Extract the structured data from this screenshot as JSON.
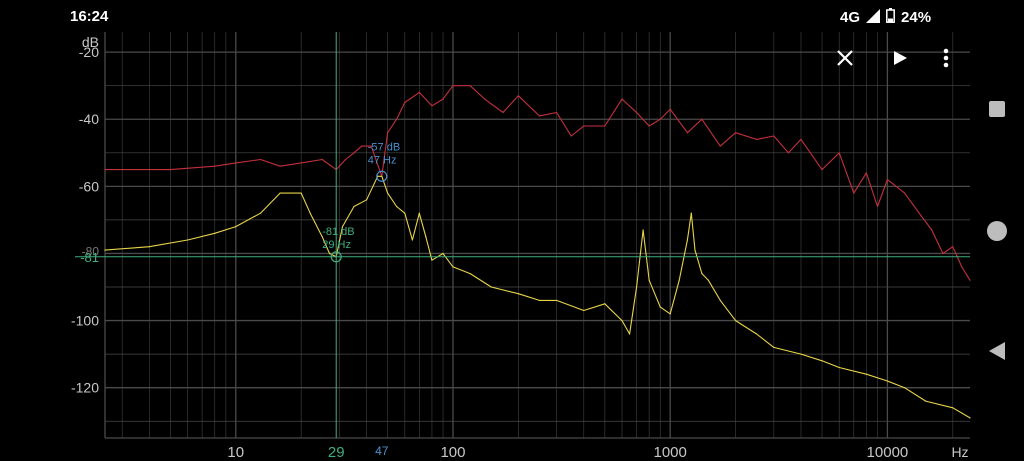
{
  "status_bar": {
    "time": "16:24",
    "network": "4G",
    "battery": "24%"
  },
  "controls": {
    "close_icon": "close-icon",
    "play_icon": "play-icon",
    "menu_icon": "more-vert-icon"
  },
  "nav_bar": {
    "square_icon": "recents-square-icon",
    "circle_icon": "home-circle-icon",
    "back_icon": "back-triangle-icon"
  },
  "colors": {
    "background": "#000000",
    "grid": "#4a4a4a",
    "series_red": "#c4303c",
    "series_yellow": "#e8d44a",
    "cursor_green": "#3fae7e",
    "marker_blue": "#4a8fd0",
    "axis_text": "#c8c8c8"
  },
  "chart_data": {
    "type": "line",
    "x_scale": "log",
    "xlim": [
      2.5,
      24000
    ],
    "ylim": [
      -135,
      -14
    ],
    "ylabel": "dB",
    "xlabel": "Hz",
    "x_ticks": [
      {
        "value": 10,
        "label": "10"
      },
      {
        "value": 100,
        "label": "100"
      },
      {
        "value": 1000,
        "label": "1000"
      },
      {
        "value": 10000,
        "label": "10000"
      }
    ],
    "y_ticks": [
      {
        "value": -20,
        "label": "-20"
      },
      {
        "value": -40,
        "label": "-40"
      },
      {
        "value": -60,
        "label": "-60"
      },
      {
        "value": -100,
        "label": "-100"
      },
      {
        "value": -120,
        "label": "-120"
      }
    ],
    "series": [
      {
        "color": "#c4303c",
        "x": [
          2.5,
          5,
          8,
          10,
          13,
          16,
          20,
          25,
          29,
          32,
          35,
          38,
          42,
          47,
          50,
          55,
          60,
          70,
          80,
          90,
          100,
          120,
          140,
          170,
          200,
          250,
          300,
          350,
          400,
          500,
          600,
          700,
          800,
          900,
          1000,
          1200,
          1400,
          1700,
          2000,
          2500,
          3000,
          3500,
          4000,
          5000,
          6000,
          7000,
          8000,
          9000,
          10000,
          12000,
          14000,
          16000,
          18000,
          20000,
          22000,
          24000
        ],
        "y": [
          -55,
          -55,
          -54,
          -53,
          -52,
          -54,
          -53,
          -52,
          -55,
          -52,
          -50,
          -48,
          -48,
          -57,
          -44,
          -40,
          -35,
          -32,
          -36,
          -34,
          -30,
          -30,
          -34,
          -38,
          -33,
          -39,
          -38,
          -45,
          -42,
          -42,
          -34,
          -38,
          -42,
          -40,
          -37,
          -44,
          -40,
          -48,
          -44,
          -46,
          -45,
          -50,
          -46,
          -55,
          -50,
          -62,
          -56,
          -66,
          -58,
          -62,
          -68,
          -73,
          -80,
          -78,
          -84,
          -88
        ]
      },
      {
        "color": "#e8d44a",
        "x": [
          2.5,
          4,
          6,
          8,
          10,
          13,
          16,
          20,
          22,
          25,
          27,
          29,
          31,
          35,
          40,
          45,
          47,
          50,
          55,
          60,
          65,
          70,
          75,
          80,
          90,
          100,
          120,
          150,
          200,
          250,
          300,
          400,
          500,
          600,
          650,
          700,
          750,
          800,
          900,
          1000,
          1100,
          1200,
          1250,
          1300,
          1400,
          1500,
          1700,
          2000,
          2500,
          3000,
          4000,
          5000,
          6000,
          8000,
          10000,
          12000,
          15000,
          20000,
          24000
        ],
        "y": [
          -79,
          -78,
          -76,
          -74,
          -72,
          -68,
          -62,
          -62,
          -68,
          -75,
          -80,
          -81,
          -72,
          -66,
          -64,
          -57,
          -57,
          -62,
          -66,
          -68,
          -76,
          -68,
          -75,
          -82,
          -80,
          -84,
          -86,
          -90,
          -92,
          -94,
          -94,
          -97,
          -95,
          -100,
          -104,
          -90,
          -73,
          -88,
          -96,
          -98,
          -88,
          -76,
          -68,
          -79,
          -86,
          -88,
          -94,
          -100,
          -104,
          -108,
          -110,
          -112,
          -114,
          -116,
          -118,
          -120,
          -124,
          -126,
          -129
        ]
      }
    ],
    "cursor": {
      "x_label": "29",
      "y_label": "-81",
      "x_value": 29,
      "y_value": -81,
      "readout_db": "-81 dB",
      "readout_hz": "29 Hz"
    },
    "peak_marker": {
      "x_label": "47",
      "x_value": 47,
      "y_value": -57,
      "readout_db": "-57 dB",
      "readout_hz": "47 Hz"
    },
    "extra_y_labels": [
      {
        "value": -80,
        "label": "-80"
      }
    ],
    "grid": true
  }
}
